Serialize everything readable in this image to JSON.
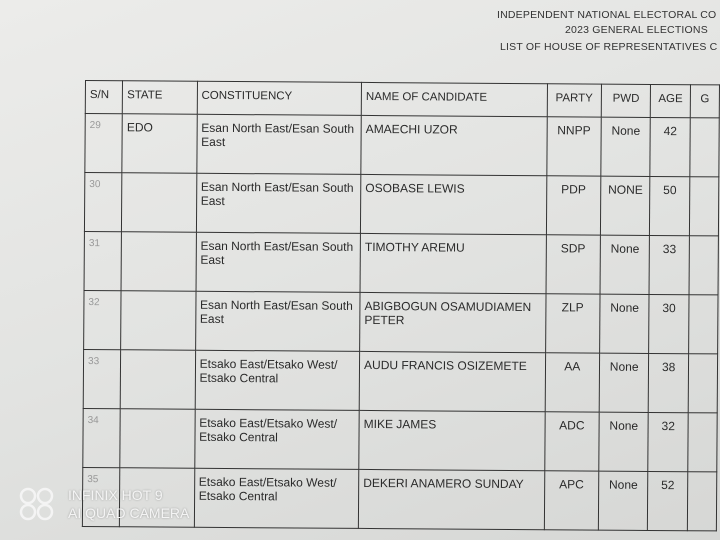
{
  "header": {
    "line1": "INDEPENDENT NATIONAL ELECTORAL CO",
    "line2": "2023 GENERAL ELECTIONS",
    "line3": "LIST OF HOUSE OF REPRESENTATIVES C"
  },
  "columns": [
    "S/N",
    "STATE",
    "CONSTITUENCY",
    "NAME OF CANDIDATE",
    "PARTY",
    "PWD",
    "AGE",
    "G"
  ],
  "rows": [
    {
      "sn": "29",
      "state": "EDO",
      "constituency": "Esan North East/Esan South East",
      "name": "AMAECHI UZOR",
      "party": "NNPP",
      "pwd": "None",
      "age": "42"
    },
    {
      "sn": "30",
      "state": "",
      "constituency": "Esan North East/Esan South East",
      "name": "OSOBASE LEWIS",
      "party": "PDP",
      "pwd": "NONE",
      "age": "50"
    },
    {
      "sn": "31",
      "state": "",
      "constituency": "Esan North East/Esan South East",
      "name": "TIMOTHY AREMU",
      "party": "SDP",
      "pwd": "None",
      "age": "33"
    },
    {
      "sn": "32",
      "state": "",
      "constituency": "Esan North East/Esan South East",
      "name": "ABIGBOGUN OSAMUDIAMEN PETER",
      "party": "ZLP",
      "pwd": "None",
      "age": "30"
    },
    {
      "sn": "33",
      "state": "",
      "constituency": "Etsako East/Etsako West/ Etsako Central",
      "name": "AUDU FRANCIS OSIZEMETE",
      "party": "AA",
      "pwd": "None",
      "age": "38"
    },
    {
      "sn": "34",
      "state": "",
      "constituency": "Etsako East/Etsako West/ Etsako Central",
      "name": "MIKE JAMES",
      "party": "ADC",
      "pwd": "None",
      "age": "32"
    },
    {
      "sn": "35",
      "state": "",
      "constituency": "Etsako East/Etsako West/ Etsako Central",
      "name": "DEKERI ANAMERO SUNDAY",
      "party": "APC",
      "pwd": "None",
      "age": "52"
    }
  ],
  "watermark": {
    "line1": "INFINIX HOT 9",
    "line2": "AI QUAD CAMERA",
    "icon": "camera-brand-logo"
  }
}
